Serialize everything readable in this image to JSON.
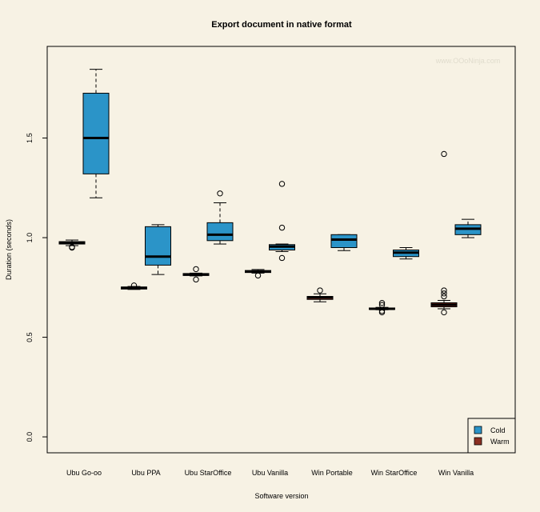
{
  "chart_data": {
    "type": "boxplot",
    "title": "Export document in native format",
    "xlabel": "Software version",
    "ylabel": "Duration (seconds)",
    "watermark": "www.OOoNinja.com",
    "ylim": [
      -0.08,
      1.96
    ],
    "yticks": [
      0.0,
      0.5,
      1.0,
      1.5
    ],
    "ytick_labels": [
      "0.0",
      "0.5",
      "1.0",
      "1.5"
    ],
    "categories": [
      "Ubu Go-oo",
      "Ubu PPA",
      "Ubu StarOffice",
      "Ubu Vanilla",
      "Win Portable",
      "Win StarOffice",
      "Win Vanilla"
    ],
    "legend": {
      "position": "bottom-right",
      "entries": [
        {
          "name": "Cold",
          "color": "#2b94c8"
        },
        {
          "name": "Warm",
          "color": "#8b2f22"
        }
      ]
    },
    "series": [
      {
        "name": "Ubu Go-oo Cold",
        "category": "Ubu Go-oo",
        "color": "#2b94c8",
        "whisker_low": 0.96,
        "q1": 0.968,
        "median": 0.975,
        "q3": 0.98,
        "whisker_high": 0.988,
        "outliers": [
          0.953,
          0.95
        ]
      },
      {
        "name": "Ubu Go-oo",
        "category": "Ubu Go-oo",
        "color": "#2b94c8",
        "whisker_low": 1.2,
        "q1": 1.32,
        "median": 1.5,
        "q3": 1.725,
        "whisker_high": 1.845,
        "outliers": []
      },
      {
        "name": "Ubu PPA Cold",
        "category": "Ubu PPA",
        "color": "#2b94c8",
        "whisker_low": 0.74,
        "q1": 0.742,
        "median": 0.748,
        "q3": 0.752,
        "whisker_high": 0.755,
        "outliers": [
          0.76
        ]
      },
      {
        "name": "Ubu PPA",
        "category": "Ubu PPA",
        "color": "#2b94c8",
        "whisker_low": 0.815,
        "q1": 0.862,
        "median": 0.905,
        "q3": 1.055,
        "whisker_high": 1.065,
        "outliers": []
      },
      {
        "name": "Ubu StarOffice Cold",
        "category": "Ubu StarOffice",
        "color": "#2b94c8",
        "whisker_low": 0.808,
        "q1": 0.81,
        "median": 0.815,
        "q3": 0.82,
        "whisker_high": 0.822,
        "outliers": [
          0.842,
          0.79
        ]
      },
      {
        "name": "Ubu StarOffice",
        "category": "Ubu StarOffice",
        "color": "#2b94c8",
        "whisker_low": 0.968,
        "q1": 0.985,
        "median": 1.015,
        "q3": 1.075,
        "whisker_high": 1.175,
        "outliers": [
          1.222
        ]
      },
      {
        "name": "Ubu Vanilla Cold",
        "category": "Ubu Vanilla",
        "color": "#2b94c8",
        "whisker_low": 0.822,
        "q1": 0.825,
        "median": 0.83,
        "q3": 0.835,
        "whisker_high": 0.84,
        "outliers": [
          0.81
        ]
      },
      {
        "name": "Ubu Vanilla",
        "category": "Ubu Vanilla",
        "color": "#2b94c8",
        "whisker_low": 0.93,
        "q1": 0.938,
        "median": 0.955,
        "q3": 0.965,
        "whisker_high": 0.968,
        "outliers": [
          1.27,
          1.05,
          0.898
        ]
      },
      {
        "name": "Win Portable Warm",
        "category": "Win Portable",
        "color": "#8b2f22",
        "whisker_low": 0.678,
        "q1": 0.69,
        "median": 0.7,
        "q3": 0.705,
        "whisker_high": 0.718,
        "outliers": [
          0.735
        ]
      },
      {
        "name": "Win Portable",
        "category": "Win Portable",
        "color": "#2b94c8",
        "whisker_low": 0.935,
        "q1": 0.95,
        "median": 0.99,
        "q3": 1.015,
        "whisker_high": 1.015,
        "outliers": []
      },
      {
        "name": "Win StarOffice Warm",
        "category": "Win StarOffice",
        "color": "#8b2f22",
        "whisker_low": 0.638,
        "q1": 0.64,
        "median": 0.643,
        "q3": 0.647,
        "whisker_high": 0.65,
        "outliers": [
          0.672,
          0.662,
          0.625,
          0.632
        ]
      },
      {
        "name": "Win StarOffice",
        "category": "Win StarOffice",
        "color": "#2b94c8",
        "whisker_low": 0.893,
        "q1": 0.905,
        "median": 0.925,
        "q3": 0.938,
        "whisker_high": 0.95,
        "outliers": []
      },
      {
        "name": "Win Vanilla Warm",
        "category": "Win Vanilla",
        "color": "#8b2f22",
        "whisker_low": 0.643,
        "q1": 0.653,
        "median": 0.663,
        "q3": 0.673,
        "whisker_high": 0.685,
        "outliers": [
          1.42,
          0.735,
          0.72,
          0.705,
          0.625
        ]
      },
      {
        "name": "Win Vanilla",
        "category": "Win Vanilla",
        "color": "#2b94c8",
        "whisker_low": 1.0,
        "q1": 1.015,
        "median": 1.045,
        "q3": 1.065,
        "whisker_high": 1.092,
        "outliers": []
      }
    ]
  }
}
